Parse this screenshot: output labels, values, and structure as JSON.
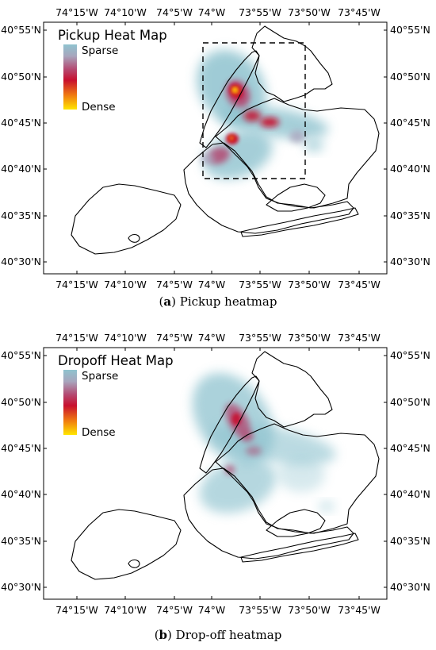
{
  "figure": {
    "x_ticks": [
      "74°15'W",
      "74°10'W",
      "74°5'W",
      "74°W",
      "73°55'W",
      "73°50'W",
      "73°45'W"
    ],
    "y_ticks": [
      "40°55'N",
      "40°50'N",
      "40°45'N",
      "40°40'N",
      "40°35'N",
      "40°30'N"
    ],
    "colors": {
      "sparse": "#8fc3cf",
      "mid": "#c0304a",
      "dense": "#ffe600",
      "outline": "#000000"
    }
  },
  "panels": [
    {
      "legend_title": "Pickup Heat Map",
      "legend_low": "Sparse",
      "legend_high": "Dense",
      "caption_letter": "a",
      "caption_text": "Pickup heatmap",
      "has_dashed_box": true
    },
    {
      "legend_title": "Dropoff Heat Map",
      "legend_low": "Sparse",
      "legend_high": "Dense",
      "caption_letter": "b",
      "caption_text": "Drop-off heatmap",
      "has_dashed_box": false
    }
  ]
}
